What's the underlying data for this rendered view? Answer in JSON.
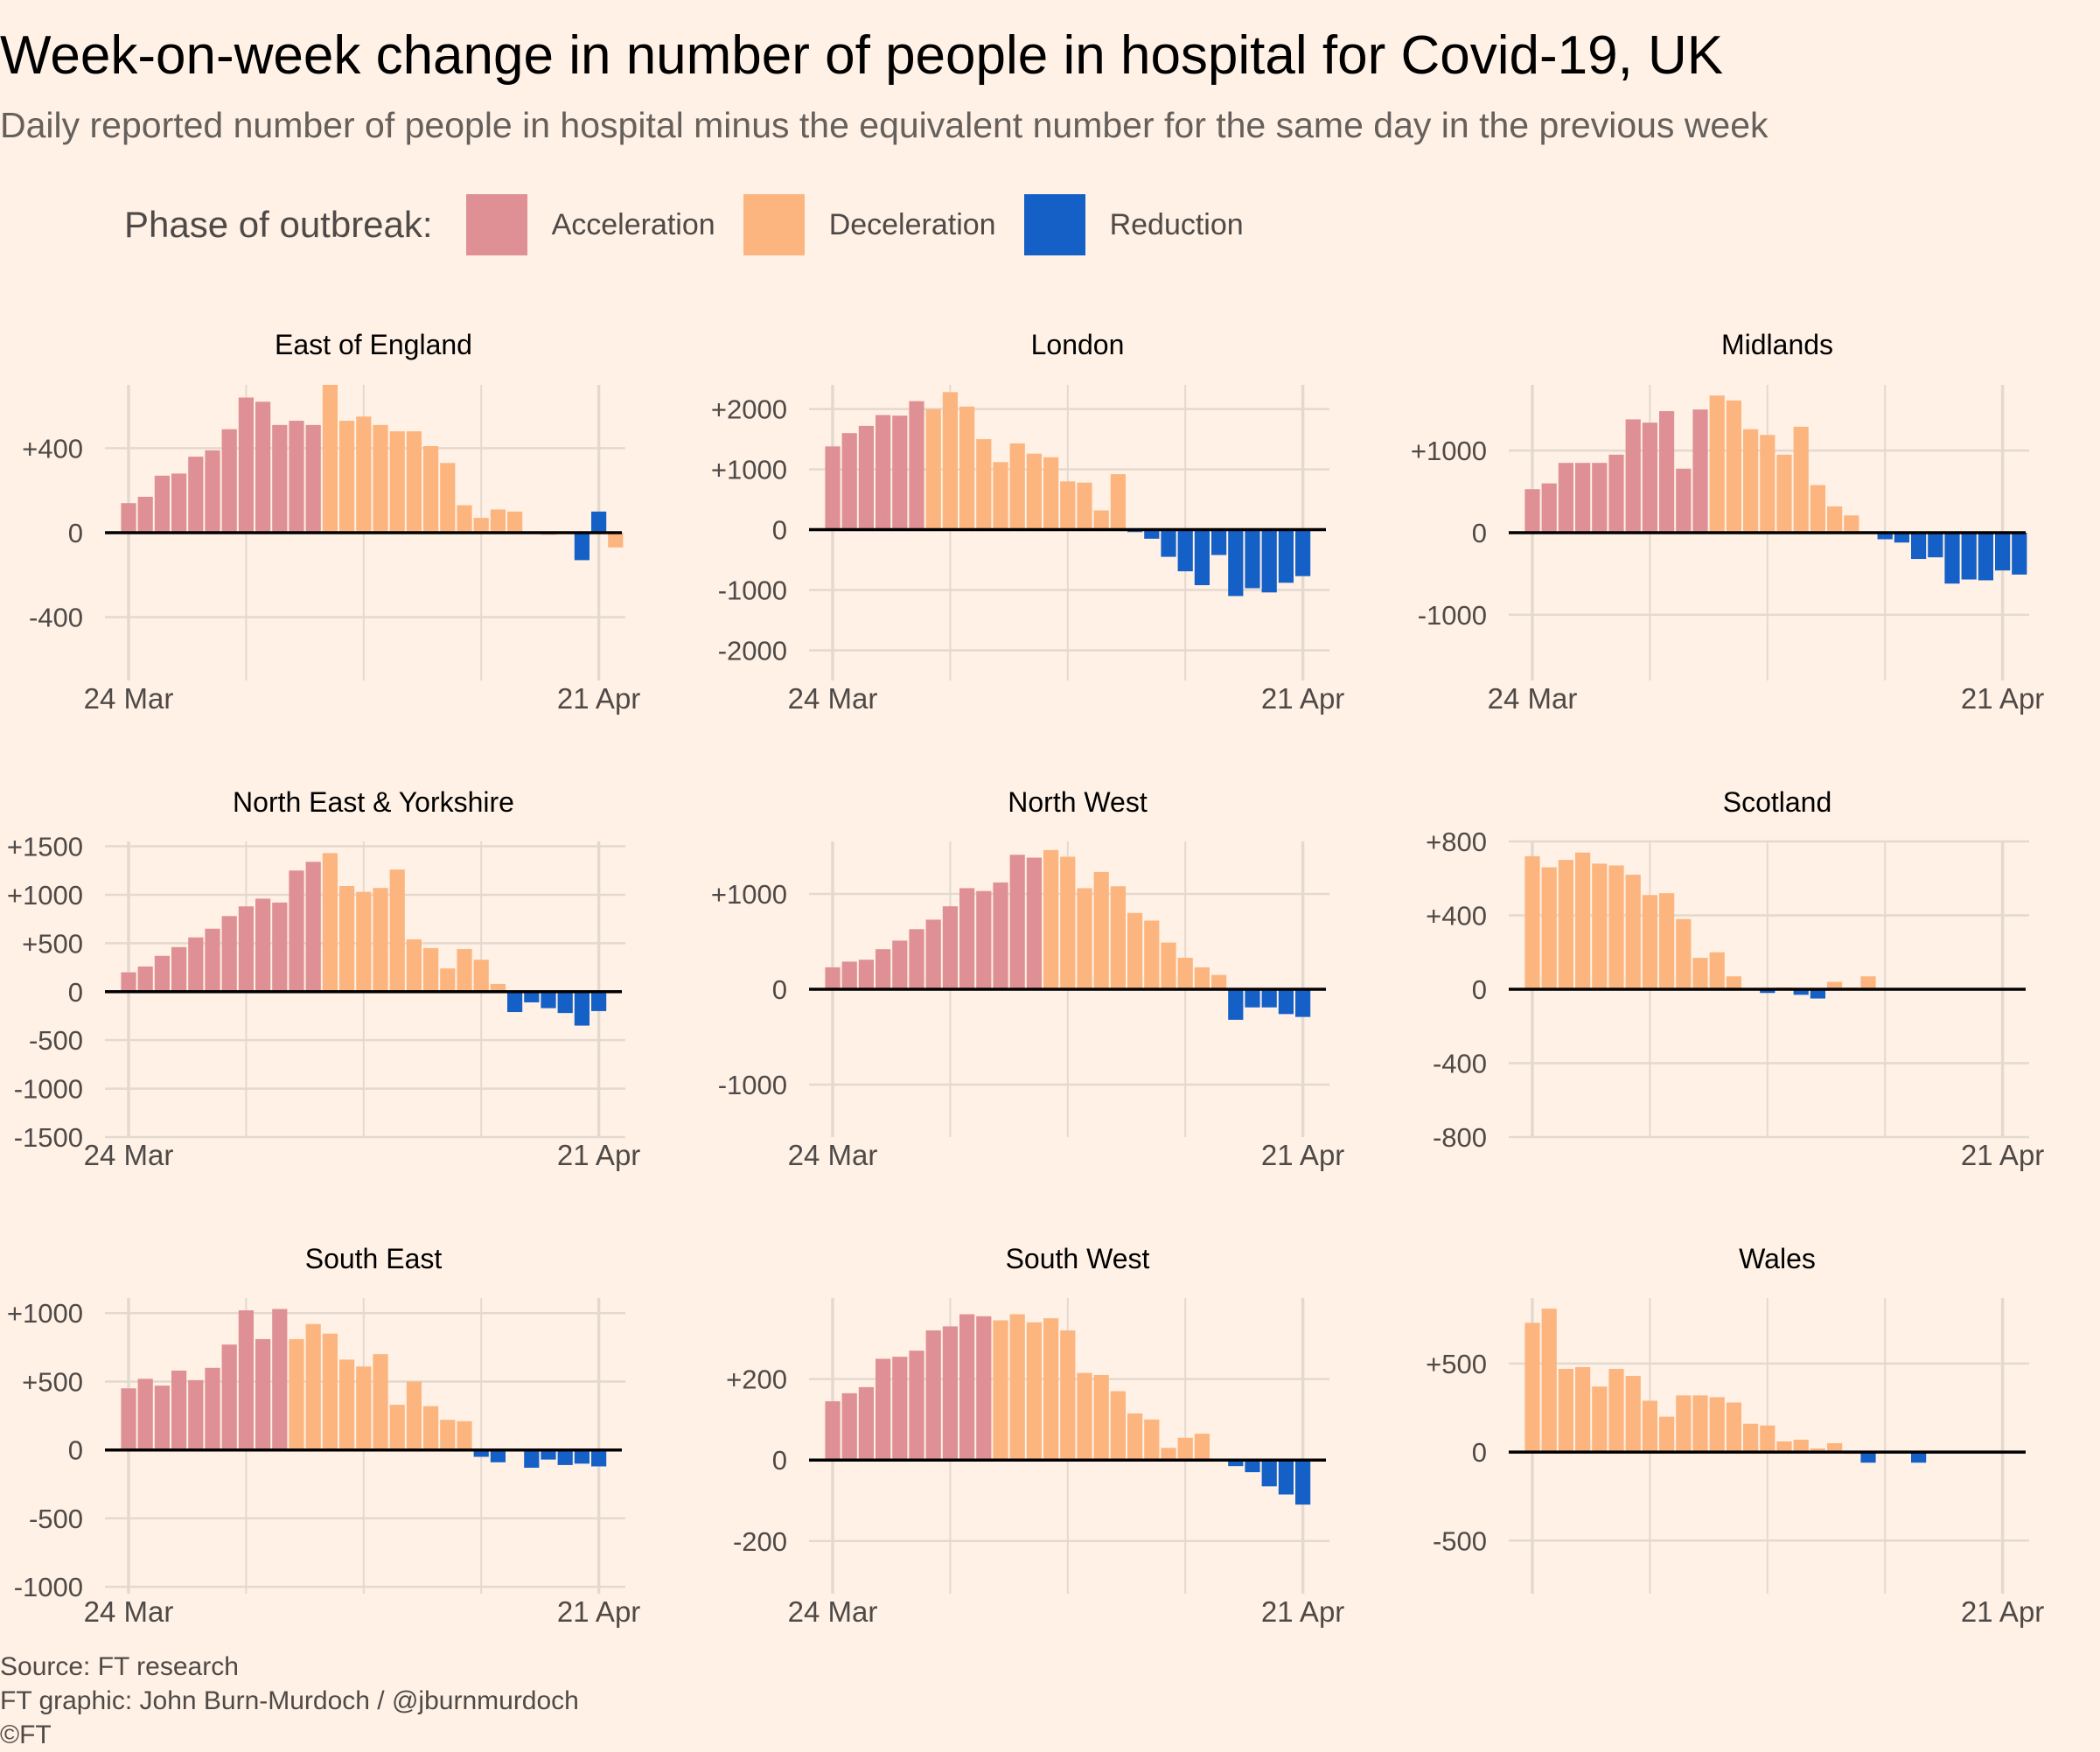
{
  "title": "Week-on-week change in number of people in hospital for Covid-19, UK",
  "subtitle": "Daily reported number of people in hospital minus the equivalent number for the same day in the previous week",
  "legend": {
    "title": "Phase of outbreak:",
    "items": [
      {
        "key": "A",
        "label": "Acceleration",
        "color": "#de9094"
      },
      {
        "key": "D",
        "label": "Deceleration",
        "color": "#fcb57f"
      },
      {
        "key": "R",
        "label": "Reduction",
        "color": "#1460c7"
      }
    ]
  },
  "footer": {
    "source": "Source: FT research",
    "credit": "FT graphic: John Burn-Murdoch / @jburnmurdoch",
    "copyright": "©FT"
  },
  "colors": {
    "background": "#fff1e5",
    "grid": "#e4d9cf",
    "zero_line": "#000000",
    "axis_text": "#4f4a47"
  },
  "chart_data": [
    {
      "type": "bar",
      "title": "East of England",
      "x_start": "24 Mar",
      "x_end": "21 Apr",
      "x_tick_labels": [
        "24 Mar",
        "21 Apr"
      ],
      "ylim": [
        -700,
        700
      ],
      "y_ticks": [
        -400,
        0,
        400
      ],
      "y_tick_labels": [
        "-400",
        "0",
        "+400"
      ],
      "values": [
        140,
        170,
        270,
        280,
        360,
        390,
        490,
        640,
        620,
        510,
        530,
        510,
        700,
        530,
        550,
        510,
        480,
        480,
        410,
        330,
        130,
        70,
        110,
        100,
        0,
        -10,
        0,
        -130,
        100,
        -70
      ],
      "phases": "AAAAAAAAAAAADDDDDDDDDDDDDDDRRDR"
    },
    {
      "type": "bar",
      "title": "London",
      "x_start": "24 Mar",
      "x_end": "21 Apr",
      "x_tick_labels": [
        "24 Mar",
        "21 Apr"
      ],
      "ylim": [
        -2500,
        2400
      ],
      "y_ticks": [
        -2000,
        -1000,
        0,
        1000,
        2000
      ],
      "y_tick_labels": [
        "-2000",
        "-1000",
        "0",
        "+1000",
        "+2000"
      ],
      "values": [
        1380,
        1600,
        1720,
        1900,
        1890,
        2130,
        2000,
        2280,
        2040,
        1500,
        1120,
        1430,
        1260,
        1200,
        800,
        780,
        320,
        920,
        -40,
        -150,
        -450,
        -690,
        -920,
        -420,
        -1100,
        -970,
        -1040,
        -880,
        -770
      ],
      "phases": "AAAAAADDDDDDDDDDDDRRRRRRRRRRR"
    },
    {
      "type": "bar",
      "title": "Midlands",
      "x_start": "24 Mar",
      "x_end": "21 Apr",
      "x_tick_labels": [
        "24 Mar",
        "21 Apr"
      ],
      "ylim": [
        -1800,
        1800
      ],
      "y_ticks": [
        -1000,
        0,
        1000
      ],
      "y_tick_labels": [
        "-1000",
        "0",
        "+1000"
      ],
      "values": [
        530,
        600,
        850,
        850,
        850,
        950,
        1380,
        1340,
        1480,
        780,
        1500,
        1670,
        1610,
        1260,
        1190,
        950,
        1290,
        580,
        320,
        210,
        0,
        -80,
        -120,
        -320,
        -300,
        -620,
        -570,
        -580,
        -460,
        -510
      ],
      "phases": "AAAAAAAAAAADDDDDDDDDRRRRRRRRRR"
    },
    {
      "type": "bar",
      "title": "North East & Yorkshire",
      "x_start": "24 Mar",
      "x_end": "21 Apr",
      "x_tick_labels": [
        "24 Mar",
        "21 Apr"
      ],
      "ylim": [
        -1500,
        1550
      ],
      "y_ticks": [
        -1500,
        -1000,
        -500,
        0,
        500,
        1000,
        1500
      ],
      "y_tick_labels": [
        "-1500",
        "-1000",
        "-500",
        "0",
        "+500",
        "+1000",
        "+1500"
      ],
      "values": [
        200,
        260,
        370,
        460,
        560,
        650,
        780,
        880,
        960,
        920,
        1250,
        1340,
        1430,
        1090,
        1030,
        1070,
        1260,
        540,
        450,
        240,
        440,
        330,
        80,
        -210,
        -110,
        -170,
        -220,
        -350,
        -200
      ],
      "phases": "AAAAAAAAAAAADDDDDDDDDDDRRRRRR"
    },
    {
      "type": "bar",
      "title": "North West",
      "x_start": "24 Mar",
      "x_end": "21 Apr",
      "x_tick_labels": [
        "24 Mar",
        "21 Apr"
      ],
      "ylim": [
        -1550,
        1550
      ],
      "y_ticks": [
        -1000,
        0,
        1000
      ],
      "y_tick_labels": [
        "-1000",
        "0",
        "+1000"
      ],
      "values": [
        230,
        290,
        310,
        420,
        510,
        630,
        730,
        870,
        1060,
        1030,
        1120,
        1410,
        1380,
        1460,
        1390,
        1060,
        1230,
        1080,
        800,
        720,
        490,
        330,
        230,
        150,
        -320,
        -190,
        -190,
        -260,
        -290
      ],
      "phases": "AAAAAAAAAAAAADDDDDDDDDDDRRRRR"
    },
    {
      "type": "bar",
      "title": "Scotland",
      "x_start": "24 Mar",
      "x_end": "21 Apr",
      "x_tick_labels": [
        "21 Apr"
      ],
      "ylim": [
        -800,
        800
      ],
      "y_ticks": [
        -800,
        -400,
        0,
        400,
        800
      ],
      "y_tick_labels": [
        "-800",
        "-400",
        "0",
        "+400",
        "+800"
      ],
      "values": [
        720,
        660,
        700,
        740,
        680,
        670,
        620,
        510,
        520,
        380,
        170,
        200,
        70,
        0,
        -20,
        10,
        -30,
        -50,
        40,
        10,
        70
      ],
      "phases": "DDDDDDDDDDDDDDRDRRDDD"
    },
    {
      "type": "bar",
      "title": "South East",
      "x_start": "24 Mar",
      "x_end": "21 Apr",
      "x_tick_labels": [
        "24 Mar",
        "21 Apr"
      ],
      "ylim": [
        -1050,
        1110
      ],
      "y_ticks": [
        -1000,
        -500,
        0,
        500,
        1000
      ],
      "y_tick_labels": [
        "-1000",
        "-500",
        "0",
        "+500",
        "+1000"
      ],
      "values": [
        450,
        520,
        470,
        580,
        510,
        600,
        770,
        1020,
        810,
        1030,
        810,
        920,
        850,
        660,
        610,
        700,
        330,
        500,
        320,
        220,
        210,
        -50,
        -90,
        -10,
        -130,
        -70,
        -110,
        -100,
        -120
      ],
      "phases": "AAAAAAAAAADDDDDDDDDDDRRRRRRRR"
    },
    {
      "type": "bar",
      "title": "South West",
      "x_start": "24 Mar",
      "x_end": "21 Apr",
      "x_tick_labels": [
        "24 Mar",
        "21 Apr"
      ],
      "ylim": [
        -330,
        400
      ],
      "y_ticks": [
        -200,
        0,
        200
      ],
      "y_tick_labels": [
        "-200",
        "0",
        "+200"
      ],
      "values": [
        145,
        165,
        180,
        250,
        255,
        270,
        320,
        330,
        360,
        355,
        345,
        360,
        340,
        350,
        320,
        215,
        210,
        170,
        115,
        100,
        30,
        55,
        65,
        0,
        -15,
        -30,
        -65,
        -85,
        -110
      ],
      "phases": "AAAAAAAAAADDDDDDDDDDDDDRRRRRR"
    },
    {
      "type": "bar",
      "title": "Wales",
      "x_start": "24 Mar",
      "x_end": "21 Apr",
      "x_tick_labels": [
        "21 Apr"
      ],
      "ylim": [
        -800,
        870
      ],
      "y_ticks": [
        -500,
        0,
        500
      ],
      "y_tick_labels": [
        "-500",
        "0",
        "+500"
      ],
      "values": [
        730,
        810,
        470,
        480,
        370,
        470,
        430,
        290,
        200,
        320,
        320,
        310,
        280,
        160,
        150,
        60,
        70,
        20,
        50,
        -10,
        -60,
        0,
        0,
        -60
      ],
      "phases": "DDDDDDDDDDDDDDDDDDDDRRRR"
    }
  ]
}
